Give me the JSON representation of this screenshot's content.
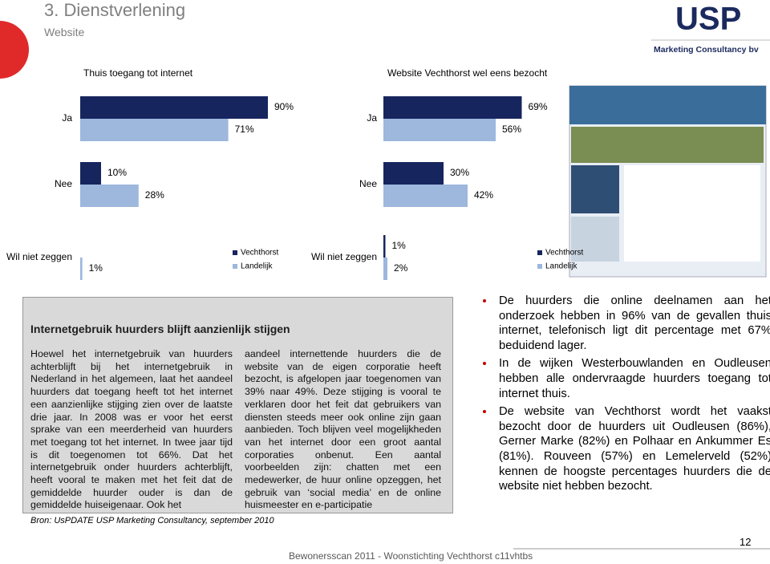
{
  "header": {
    "title": "3. Dienstverlening",
    "subtitle": "Website"
  },
  "logo": {
    "text": "USP",
    "tagline": "Marketing Consultancy bv"
  },
  "chart_data": [
    {
      "type": "bar",
      "orientation": "horizontal",
      "title": "Thuis toegang tot internet",
      "categories": [
        "Ja",
        "Nee",
        "Wil niet zeggen"
      ],
      "xlim": [
        0,
        100
      ],
      "series": [
        {
          "name": "Vechthorst",
          "color": "#17255e",
          "values": [
            90,
            10,
            null
          ],
          "value_labels": [
            "90%",
            "10%",
            null
          ]
        },
        {
          "name": "Landelijk",
          "color": "#9db7dd",
          "values": [
            71,
            28,
            1
          ],
          "value_labels": [
            "71%",
            "28%",
            "1%"
          ]
        }
      ]
    },
    {
      "type": "bar",
      "orientation": "horizontal",
      "title": "Website Vechthorst wel eens bezocht",
      "categories": [
        "Ja",
        "Nee",
        "Wil niet zeggen"
      ],
      "xlim": [
        0,
        100
      ],
      "series": [
        {
          "name": "Vechthorst",
          "color": "#17255e",
          "values": [
            69,
            30,
            1
          ],
          "value_labels": [
            "69%",
            "30%",
            "1%"
          ]
        },
        {
          "name": "Landelijk",
          "color": "#9db7dd",
          "values": [
            56,
            42,
            2
          ],
          "value_labels": [
            "56%",
            "42%",
            "2%"
          ]
        }
      ]
    }
  ],
  "textbox": {
    "title": "Internetgebruik huurders blijft aanzienlijk stijgen",
    "columns": [
      "Hoewel het internetgebruik van huurders achterblijft bij het internetgebruik in Nederland in het algemeen, laat het aandeel huurders dat toegang heeft tot het internet een aanzienlijke stijging zien over de laatste drie jaar. In 2008 was er voor het eerst sprake van een meerderheid van huurders met toegang tot het internet. In twee jaar tijd is dit toegenomen tot 66%. Dat het internetgebruik onder huurders achterblijft, heeft vooral te maken met het feit dat de gemiddelde huurder ouder is dan de gemiddelde huiseigenaar. Ook het",
      "aandeel internettende huurders die de website van de eigen corporatie heeft bezocht, is afgelopen jaar toegenomen van 39% naar 49%. Deze stijging is vooral te verklaren door het feit dat gebruikers van diensten steeds meer ook online zijn gaan aanbieden. Toch blijven veel mogelijkheden van het internet door een groot aantal corporaties onbenut. Een aantal voorbeelden zijn: chatten met een medewerker, de huur online opzeggen, het gebruik van ‘social media’ en de online huismeester en e-participatie"
    ]
  },
  "source": "Bron: UsPDATE USP Marketing Consultancy, september 2010",
  "bullets": [
    "De huurders die online deelnamen aan het onderzoek hebben in 96% van de gevallen thuis internet, telefonisch ligt dit percentage met 67% beduidend lager.",
    "In de wijken Westerbouwlanden en Oudleusen hebben alle ondervraagde huurders toegang tot internet thuis.",
    "De website van Vechthorst wordt het vaakst bezocht door de huurders uit Oudleusen (86%), Gerner Marke (82%) en Polhaar en Ankummer Es (81%). Rouveen (57%) en Lemelerveld (52%) kennen de hoogste percentages huurders die de website niet hebben bezocht."
  ],
  "footer": {
    "text": "Bewonersscan 2011 - Woonstichting Vechthorst c11vhtbs",
    "page": "12"
  }
}
